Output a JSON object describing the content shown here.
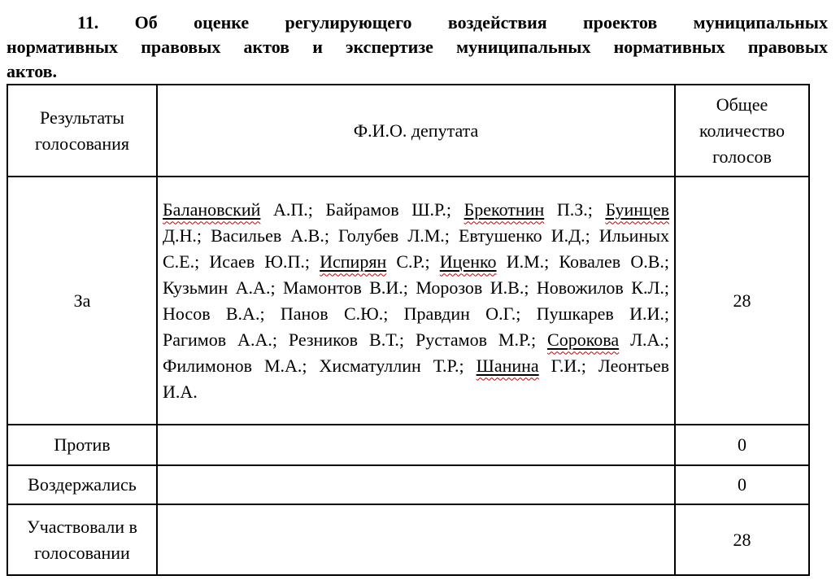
{
  "page": {
    "title": "11. Об оценке регулирующего воздействия проектов муниципальных нормативных правовых актов и экспертизе муниципальных нормативных правовых актов.",
    "title_lines": [
      "11. Об оценке регулирующего воздействия проектов муниципальных",
      "нормативных правовых актов и экспертизе муниципальных нормативных правовых",
      "актов."
    ]
  },
  "table": {
    "headers": {
      "results": "Результаты голосования",
      "deputy": "Ф.И.О. депутата",
      "votes": "Общее количество голосов"
    },
    "rows": [
      {
        "result": "За",
        "votes": "28",
        "deputies": [
          {
            "surname": "Балановский",
            "initials": "А.П.;",
            "flagged": true
          },
          {
            "surname": "Байрамов",
            "initials": "Ш.Р.;",
            "flagged": false
          },
          {
            "surname": "Брекотнин",
            "initials": "П.З.;",
            "flagged": true
          },
          {
            "surname": "Буинцев",
            "initials": "Д.Н.;",
            "flagged": true
          },
          {
            "surname": "Васильев",
            "initials": "А.В.;",
            "flagged": false
          },
          {
            "surname": "Голубев",
            "initials": "Л.М.;",
            "flagged": false
          },
          {
            "surname": "Евтушенко",
            "initials": "И.Д.;",
            "flagged": false
          },
          {
            "surname": "Ильиных",
            "initials": "С.Е.;",
            "flagged": false
          },
          {
            "surname": "Исаев",
            "initials": "Ю.П.;",
            "flagged": false
          },
          {
            "surname": "Испирян",
            "initials": "С.Р.;",
            "flagged": true
          },
          {
            "surname": "Иценко",
            "initials": "И.М.;",
            "flagged": true
          },
          {
            "surname": "Ковалев",
            "initials": "О.В.;",
            "flagged": false
          },
          {
            "surname": "Кузьмин",
            "initials": "А.А.;",
            "flagged": false
          },
          {
            "surname": "Мамонтов",
            "initials": "В.И.;",
            "flagged": false
          },
          {
            "surname": "Морозов",
            "initials": "И.В.;",
            "flagged": false
          },
          {
            "surname": "Новожилов",
            "initials": "К.Л.;",
            "flagged": false
          },
          {
            "surname": "Носов",
            "initials": "В.А.;",
            "flagged": false
          },
          {
            "surname": "Панов",
            "initials": "С.Ю.;",
            "flagged": false
          },
          {
            "surname": "Правдин",
            "initials": "О.Г.;",
            "flagged": false
          },
          {
            "surname": "Пушкарев",
            "initials": "И.И.;",
            "flagged": false
          },
          {
            "surname": "Рагимов",
            "initials": "А.А.;",
            "flagged": false
          },
          {
            "surname": "Резников",
            "initials": "В.Т.;",
            "flagged": false
          },
          {
            "surname": "Рустамов",
            "initials": "М.Р.;",
            "flagged": false
          },
          {
            "surname": "Сорокова",
            "initials": "Л.А.;",
            "flagged": true
          },
          {
            "surname": "Филимонов",
            "initials": "М.А.;",
            "flagged": false
          },
          {
            "surname": "Хисматуллин",
            "initials": "Т.Р.;",
            "flagged": false
          },
          {
            "surname": "Шанина",
            "initials": "Г.И.;",
            "flagged": true
          },
          {
            "surname": "Леонтьев",
            "initials": "И.А.",
            "flagged": false
          }
        ]
      },
      {
        "result": "Против",
        "votes": "0",
        "deputies": []
      },
      {
        "result": "Воздержались",
        "votes": "0",
        "deputies": []
      },
      {
        "result": "Участвовали в голосовании",
        "votes": "28",
        "deputies": []
      }
    ]
  },
  "colors": {
    "text": "#000000",
    "table_border": "#000000",
    "spellcheck_underline": "#c00000"
  }
}
